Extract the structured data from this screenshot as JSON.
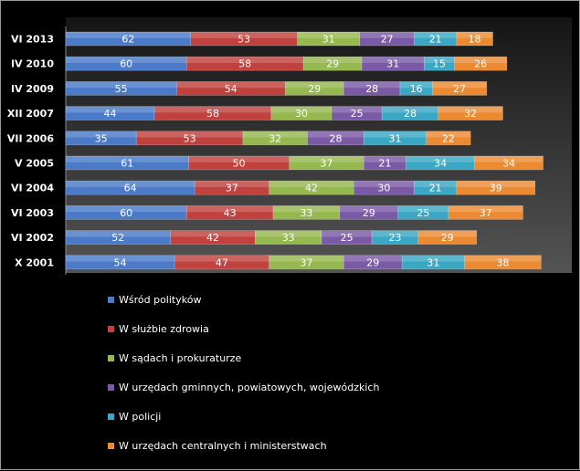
{
  "chart_data": {
    "type": "bar",
    "orientation": "horizontal",
    "stacked": true,
    "categories": [
      "VI 2013",
      "IV 2010",
      "IV 2009",
      "XII 2007",
      "VII 2006",
      "V 2005",
      "VI 2004",
      "VI 2003",
      "VI 2002",
      "X 2001"
    ],
    "series": [
      {
        "name": "Wśród polityków",
        "color": "#4a7ac8",
        "values": [
          62,
          60,
          55,
          44,
          35,
          61,
          64,
          60,
          52,
          54
        ]
      },
      {
        "name": "W służbie zdrowia",
        "color": "#c0413e",
        "values": [
          53,
          58,
          54,
          58,
          53,
          50,
          37,
          43,
          42,
          47
        ]
      },
      {
        "name": "W sądach  i prokuraturze",
        "color": "#95b84f",
        "values": [
          31,
          29,
          29,
          30,
          32,
          37,
          42,
          33,
          33,
          37
        ]
      },
      {
        "name": "W urzędach gminnych,  powiatowych,  wojewódzkich",
        "color": "#7a5aa6",
        "values": [
          27,
          31,
          28,
          25,
          28,
          21,
          30,
          29,
          25,
          29
        ]
      },
      {
        "name": "W policji",
        "color": "#3aa8c4",
        "values": [
          21,
          15,
          16,
          28,
          31,
          34,
          21,
          25,
          23,
          31
        ]
      },
      {
        "name": "W urzędach centralnych i ministerstwach",
        "color": "#ec8a32",
        "values": [
          18,
          26,
          27,
          32,
          22,
          34,
          39,
          37,
          29,
          38
        ]
      }
    ],
    "legend_position": "bottom",
    "grid": false,
    "data_labels": true
  }
}
